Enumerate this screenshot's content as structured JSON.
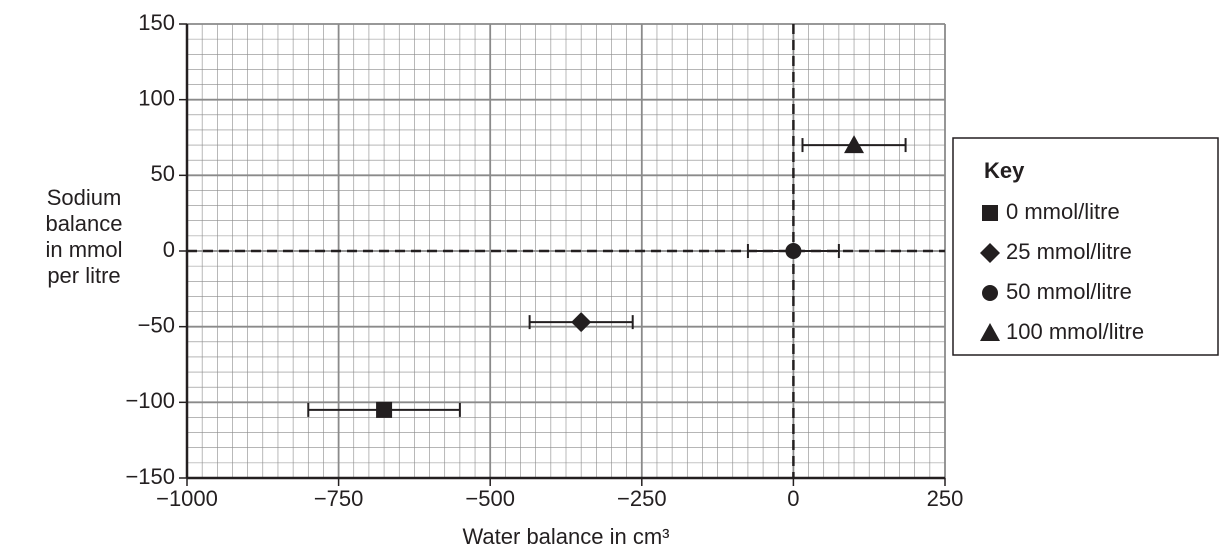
{
  "chart_data": {
    "type": "scatter",
    "xlabel": "Water balance in cm³",
    "ylabel": [
      "Sodium",
      "balance",
      "in mmol",
      "per litre"
    ],
    "xlim": [
      -1000,
      250
    ],
    "ylim": [
      -150,
      150
    ],
    "xticks": [
      {
        "value": -1000,
        "label": "−1000"
      },
      {
        "value": -750,
        "label": "−750"
      },
      {
        "value": -500,
        "label": "−500"
      },
      {
        "value": -250,
        "label": "−250"
      },
      0,
      250
    ],
    "yticks": [
      {
        "value": -150,
        "label": "−150"
      },
      {
        "value": -100,
        "label": "−100"
      },
      {
        "value": -50,
        "label": "−50"
      },
      0,
      50,
      100,
      150
    ],
    "xminor": 25,
    "yminor": 10,
    "grid": true,
    "legend_title": "Key",
    "legend": "right",
    "color": "#231f20",
    "series": [
      {
        "name": "0 mmol/litre",
        "marker": "square",
        "x": [
          -675
        ],
        "values": [
          -105
        ],
        "xerr": [
          125
        ]
      },
      {
        "name": "25 mmol/litre",
        "marker": "diamond",
        "x": [
          -350
        ],
        "values": [
          -47
        ],
        "xerr": [
          85
        ]
      },
      {
        "name": "50 mmol/litre",
        "marker": "circle",
        "x": [
          0
        ],
        "values": [
          0
        ],
        "xerr": [
          75
        ]
      },
      {
        "name": "100 mmol/litre",
        "marker": "triangle",
        "x": [
          100
        ],
        "values": [
          70
        ],
        "xerr": [
          85
        ]
      }
    ]
  }
}
